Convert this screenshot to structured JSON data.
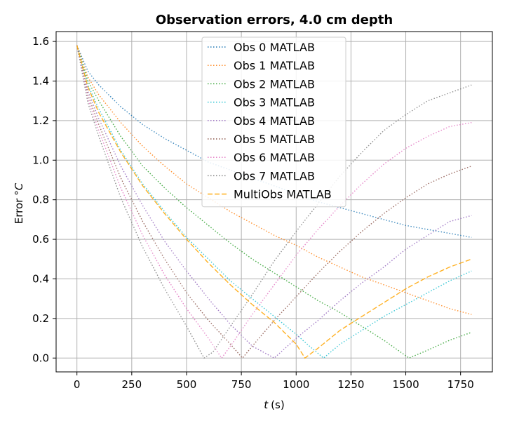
{
  "chart_data": {
    "type": "line",
    "title": "Observation errors, 4.0 cm depth",
    "xlabel_var": "t",
    "xlabel_unit": "(s)",
    "ylabel_text": "Error",
    "ylabel_unit": "°C",
    "xlim": [
      -95,
      1895
    ],
    "ylim": [
      -0.07,
      1.65
    ],
    "xticks": [
      0,
      250,
      500,
      750,
      1000,
      1250,
      1500,
      1750
    ],
    "xtick_labels": [
      "0",
      "250",
      "500",
      "750",
      "1000",
      "1250",
      "1500",
      "1750"
    ],
    "yticks": [
      0.0,
      0.2,
      0.4,
      0.6,
      0.8,
      1.0,
      1.2,
      1.4,
      1.6
    ],
    "ytick_labels": [
      "0.0",
      "0.2",
      "0.4",
      "0.6",
      "0.8",
      "1.0",
      "1.2",
      "1.4",
      "1.6"
    ],
    "grid": true,
    "legend_position": "top-center",
    "series": [
      {
        "name": "Obs 0 MATLAB",
        "color": "#1f77b4",
        "style": "dotted",
        "x": [
          0,
          50,
          100,
          200,
          300,
          400,
          500,
          600,
          700,
          800,
          900,
          1000,
          1100,
          1200,
          1300,
          1400,
          1500,
          1600,
          1700,
          1800
        ],
        "y": [
          1.58,
          1.45,
          1.38,
          1.27,
          1.18,
          1.11,
          1.05,
          0.99,
          0.95,
          0.91,
          0.87,
          0.83,
          0.79,
          0.76,
          0.73,
          0.7,
          0.67,
          0.65,
          0.63,
          0.61
        ]
      },
      {
        "name": "Obs 1 MATLAB",
        "color": "#ff7f0e",
        "style": "dotted",
        "x": [
          0,
          50,
          100,
          200,
          300,
          400,
          500,
          600,
          700,
          800,
          900,
          1000,
          1100,
          1200,
          1300,
          1400,
          1500,
          1600,
          1700,
          1800
        ],
        "y": [
          1.58,
          1.42,
          1.33,
          1.19,
          1.07,
          0.97,
          0.88,
          0.81,
          0.74,
          0.68,
          0.62,
          0.57,
          0.51,
          0.46,
          0.41,
          0.37,
          0.33,
          0.29,
          0.25,
          0.22
        ]
      },
      {
        "name": "Obs 2 MATLAB",
        "color": "#2ca02c",
        "style": "dotted",
        "x": [
          0,
          50,
          100,
          200,
          300,
          400,
          500,
          600,
          700,
          800,
          900,
          1000,
          1100,
          1200,
          1300,
          1400,
          1515,
          1600,
          1700,
          1800
        ],
        "y": [
          1.58,
          1.4,
          1.3,
          1.12,
          0.97,
          0.86,
          0.76,
          0.67,
          0.58,
          0.5,
          0.43,
          0.36,
          0.29,
          0.23,
          0.16,
          0.09,
          0.0,
          0.04,
          0.09,
          0.13
        ]
      },
      {
        "name": "Obs 3 MATLAB",
        "color": "#17becf",
        "style": "dotted",
        "x": [
          0,
          50,
          100,
          200,
          300,
          400,
          500,
          600,
          700,
          800,
          900,
          1000,
          1050,
          1125,
          1200,
          1300,
          1400,
          1500,
          1600,
          1700,
          1800
        ],
        "y": [
          1.58,
          1.38,
          1.26,
          1.05,
          0.88,
          0.74,
          0.61,
          0.5,
          0.39,
          0.3,
          0.21,
          0.12,
          0.07,
          0.0,
          0.07,
          0.14,
          0.21,
          0.27,
          0.33,
          0.39,
          0.44
        ]
      },
      {
        "name": "Obs 4 MATLAB",
        "color": "#9467bd",
        "style": "dotted",
        "x": [
          0,
          50,
          100,
          200,
          300,
          400,
          500,
          600,
          700,
          800,
          900,
          1000,
          1100,
          1200,
          1300,
          1400,
          1500,
          1600,
          1700,
          1800
        ],
        "y": [
          1.58,
          1.35,
          1.21,
          0.97,
          0.77,
          0.59,
          0.44,
          0.3,
          0.17,
          0.06,
          0.0,
          0.1,
          0.19,
          0.29,
          0.38,
          0.46,
          0.55,
          0.62,
          0.69,
          0.72
        ]
      },
      {
        "name": "Obs 5 MATLAB",
        "color": "#8c564b",
        "style": "dotted",
        "x": [
          0,
          50,
          100,
          200,
          300,
          400,
          500,
          600,
          700,
          755,
          800,
          900,
          1000,
          1100,
          1200,
          1300,
          1400,
          1500,
          1600,
          1700,
          1800
        ],
        "y": [
          1.58,
          1.33,
          1.18,
          0.91,
          0.69,
          0.5,
          0.33,
          0.19,
          0.07,
          0.0,
          0.06,
          0.19,
          0.31,
          0.43,
          0.54,
          0.64,
          0.73,
          0.81,
          0.88,
          0.93,
          0.97
        ]
      },
      {
        "name": "Obs 6 MATLAB",
        "color": "#e377c2",
        "style": "dotted",
        "x": [
          0,
          50,
          100,
          200,
          300,
          400,
          500,
          600,
          660,
          700,
          800,
          900,
          1000,
          1100,
          1200,
          1300,
          1400,
          1500,
          1600,
          1700,
          1800
        ],
        "y": [
          1.58,
          1.31,
          1.15,
          0.86,
          0.62,
          0.42,
          0.25,
          0.1,
          0.0,
          0.06,
          0.22,
          0.37,
          0.52,
          0.65,
          0.77,
          0.88,
          0.98,
          1.06,
          1.12,
          1.17,
          1.19
        ]
      },
      {
        "name": "Obs 7 MATLAB",
        "color": "#7f7f7f",
        "style": "dotted",
        "x": [
          0,
          50,
          100,
          200,
          300,
          400,
          500,
          580,
          620,
          700,
          800,
          900,
          1000,
          1100,
          1200,
          1300,
          1400,
          1500,
          1600,
          1700,
          1800
        ],
        "y": [
          1.58,
          1.29,
          1.12,
          0.81,
          0.56,
          0.35,
          0.16,
          0.0,
          0.03,
          0.16,
          0.32,
          0.49,
          0.64,
          0.78,
          0.92,
          1.04,
          1.15,
          1.23,
          1.3,
          1.34,
          1.38
        ]
      },
      {
        "name": "MultiObs MATLAB",
        "color": "#ffa500",
        "style": "dashed",
        "x": [
          0,
          50,
          100,
          200,
          300,
          400,
          500,
          600,
          700,
          800,
          900,
          1000,
          1040,
          1100,
          1200,
          1300,
          1400,
          1500,
          1600,
          1700,
          1800
        ],
        "y": [
          1.58,
          1.37,
          1.24,
          1.04,
          0.87,
          0.73,
          0.6,
          0.48,
          0.37,
          0.27,
          0.18,
          0.07,
          0.0,
          0.05,
          0.14,
          0.21,
          0.28,
          0.35,
          0.41,
          0.46,
          0.5
        ]
      }
    ]
  }
}
